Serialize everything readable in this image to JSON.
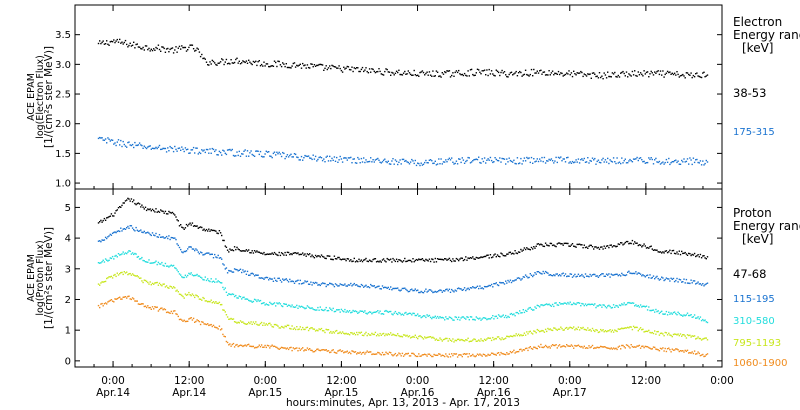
{
  "chart_data": [
    {
      "type": "scatter",
      "panel": "electron",
      "ylabel_lines": [
        "ACE EPAM",
        "log(Electron Flux)",
        "[1/(cm²s ster MeV)]"
      ],
      "ylim": [
        0.9,
        4.0
      ],
      "yticks": [
        1.0,
        1.5,
        2.0,
        2.5,
        3.0,
        3.5
      ],
      "ytick_labels": [
        "1.0",
        "1.5",
        "2.0",
        "2.5",
        "3.0",
        "3.5"
      ],
      "legend_title_lines": [
        "Electron",
        "Energy range",
        "[keV]"
      ],
      "series": [
        {
          "name": "38-53",
          "color": "#000000",
          "x": [
            -0.1,
            0.0,
            0.1,
            0.2,
            0.3,
            0.4,
            0.5,
            0.55,
            0.6,
            0.7,
            0.8,
            0.9,
            1.0,
            1.2,
            1.4,
            1.6,
            1.8,
            2.0,
            2.2,
            2.4,
            2.6,
            2.8,
            3.0,
            3.2,
            3.4,
            3.6,
            3.8,
            3.9
          ],
          "values": [
            3.35,
            3.4,
            3.35,
            3.3,
            3.28,
            3.25,
            3.3,
            3.25,
            3.05,
            3.05,
            3.08,
            3.05,
            3.02,
            3.0,
            2.95,
            2.92,
            2.88,
            2.85,
            2.85,
            2.88,
            2.85,
            2.88,
            2.85,
            2.82,
            2.85,
            2.85,
            2.82,
            2.85
          ]
        },
        {
          "name": "175-315",
          "color": "#1a73d0",
          "x": [
            -0.1,
            0.0,
            0.2,
            0.4,
            0.6,
            0.8,
            1.0,
            1.2,
            1.4,
            1.6,
            1.8,
            2.0,
            2.2,
            2.4,
            2.6,
            2.8,
            3.0,
            3.2,
            3.4,
            3.6,
            3.8,
            3.9
          ],
          "values": [
            1.75,
            1.7,
            1.62,
            1.58,
            1.55,
            1.52,
            1.5,
            1.45,
            1.42,
            1.4,
            1.38,
            1.35,
            1.38,
            1.4,
            1.38,
            1.4,
            1.4,
            1.38,
            1.4,
            1.38,
            1.38,
            1.35
          ]
        }
      ]
    },
    {
      "type": "scatter",
      "panel": "proton",
      "ylabel_lines": [
        "ACE EPAM",
        "log(Proton Flux)",
        "[1/(cm²s ster MeV)]"
      ],
      "ylim": [
        -0.2,
        5.6
      ],
      "yticks": [
        0,
        1,
        2,
        3,
        4,
        5
      ],
      "ytick_labels": [
        "0",
        "1",
        "2",
        "3",
        "4",
        "5"
      ],
      "legend_title_lines": [
        "Proton",
        "Energy range",
        "[keV]"
      ],
      "series": [
        {
          "name": "47-68",
          "color": "#000000",
          "x": [
            -0.1,
            0.0,
            0.1,
            0.2,
            0.3,
            0.4,
            0.45,
            0.5,
            0.6,
            0.7,
            0.75,
            0.8,
            1.0,
            1.2,
            1.4,
            1.6,
            1.8,
            2.0,
            2.2,
            2.4,
            2.6,
            2.8,
            3.0,
            3.2,
            3.3,
            3.4,
            3.6,
            3.8,
            3.9
          ],
          "values": [
            4.5,
            4.8,
            5.3,
            5.0,
            4.9,
            4.8,
            4.3,
            4.5,
            4.3,
            4.2,
            3.6,
            3.7,
            3.5,
            3.5,
            3.4,
            3.3,
            3.3,
            3.3,
            3.3,
            3.4,
            3.5,
            3.8,
            3.8,
            3.7,
            3.8,
            3.9,
            3.6,
            3.5,
            3.4
          ]
        },
        {
          "name": "115-195",
          "color": "#1a73d0",
          "x": [
            -0.1,
            0.0,
            0.1,
            0.2,
            0.3,
            0.4,
            0.45,
            0.5,
            0.6,
            0.7,
            0.75,
            0.8,
            1.0,
            1.2,
            1.4,
            1.6,
            1.8,
            2.0,
            2.2,
            2.4,
            2.6,
            2.8,
            3.0,
            3.2,
            3.3,
            3.4,
            3.6,
            3.8,
            3.9
          ],
          "values": [
            3.9,
            4.2,
            4.4,
            4.2,
            4.1,
            4.0,
            3.5,
            3.7,
            3.5,
            3.4,
            2.9,
            3.0,
            2.7,
            2.6,
            2.5,
            2.5,
            2.4,
            2.3,
            2.3,
            2.4,
            2.6,
            2.9,
            2.8,
            2.8,
            2.8,
            2.9,
            2.7,
            2.6,
            2.5
          ]
        },
        {
          "name": "310-580",
          "color": "#22dddd",
          "x": [
            -0.1,
            0.0,
            0.1,
            0.2,
            0.3,
            0.4,
            0.45,
            0.5,
            0.6,
            0.7,
            0.75,
            0.8,
            1.0,
            1.2,
            1.4,
            1.6,
            1.8,
            2.0,
            2.2,
            2.4,
            2.6,
            2.8,
            3.0,
            3.2,
            3.3,
            3.4,
            3.6,
            3.8,
            3.9
          ],
          "values": [
            3.2,
            3.4,
            3.6,
            3.3,
            3.2,
            3.1,
            2.7,
            2.9,
            2.7,
            2.6,
            2.2,
            2.1,
            1.9,
            1.8,
            1.7,
            1.6,
            1.6,
            1.5,
            1.4,
            1.4,
            1.5,
            1.8,
            1.9,
            1.8,
            1.8,
            1.9,
            1.6,
            1.5,
            1.3
          ]
        },
        {
          "name": "795-1193",
          "color": "#c8e61e",
          "x": [
            -0.1,
            0.0,
            0.1,
            0.2,
            0.3,
            0.4,
            0.45,
            0.5,
            0.6,
            0.7,
            0.75,
            0.8,
            1.0,
            1.2,
            1.4,
            1.6,
            1.8,
            2.0,
            2.2,
            2.4,
            2.6,
            2.8,
            3.0,
            3.2,
            3.3,
            3.4,
            3.6,
            3.8,
            3.9
          ],
          "values": [
            2.5,
            2.8,
            2.9,
            2.6,
            2.5,
            2.4,
            2.1,
            2.2,
            2.0,
            1.9,
            1.4,
            1.3,
            1.2,
            1.1,
            1.0,
            0.9,
            0.9,
            0.8,
            0.7,
            0.7,
            0.8,
            1.0,
            1.1,
            1.0,
            1.0,
            1.1,
            0.9,
            0.8,
            0.7
          ]
        },
        {
          "name": "1060-1900",
          "color": "#f08c1e",
          "x": [
            -0.1,
            0.0,
            0.1,
            0.2,
            0.3,
            0.4,
            0.45,
            0.5,
            0.6,
            0.7,
            0.75,
            0.8,
            1.0,
            1.2,
            1.4,
            1.6,
            1.8,
            2.0,
            2.2,
            2.4,
            2.6,
            2.8,
            3.0,
            3.2,
            3.3,
            3.4,
            3.6,
            3.8,
            3.9
          ],
          "values": [
            1.8,
            2.0,
            2.1,
            1.8,
            1.7,
            1.6,
            1.3,
            1.4,
            1.2,
            1.1,
            0.6,
            0.5,
            0.5,
            0.4,
            0.35,
            0.3,
            0.25,
            0.2,
            0.2,
            0.2,
            0.3,
            0.5,
            0.5,
            0.45,
            0.45,
            0.5,
            0.4,
            0.3,
            0.2
          ]
        }
      ]
    }
  ],
  "x_axis": {
    "xlim": [
      -0.25,
      4.0
    ],
    "ticks": [
      0.0,
      0.5,
      1.0,
      1.5,
      2.0,
      2.5,
      3.0,
      3.5,
      4.0
    ],
    "tick_time_labels": [
      "0:00",
      "12:00",
      "0:00",
      "12:00",
      "0:00",
      "12:00",
      "0:00",
      "12:00",
      "0:00"
    ],
    "tick_date_labels": [
      "Apr.14",
      "Apr.14",
      "Apr.15",
      "Apr.15",
      "Apr.16",
      "Apr.16",
      "Apr.17",
      "",
      ""
    ],
    "minor_step": 0.125,
    "xlabel": "hours:minutes, Apr. 13, 2013 - Apr. 17, 2013"
  }
}
